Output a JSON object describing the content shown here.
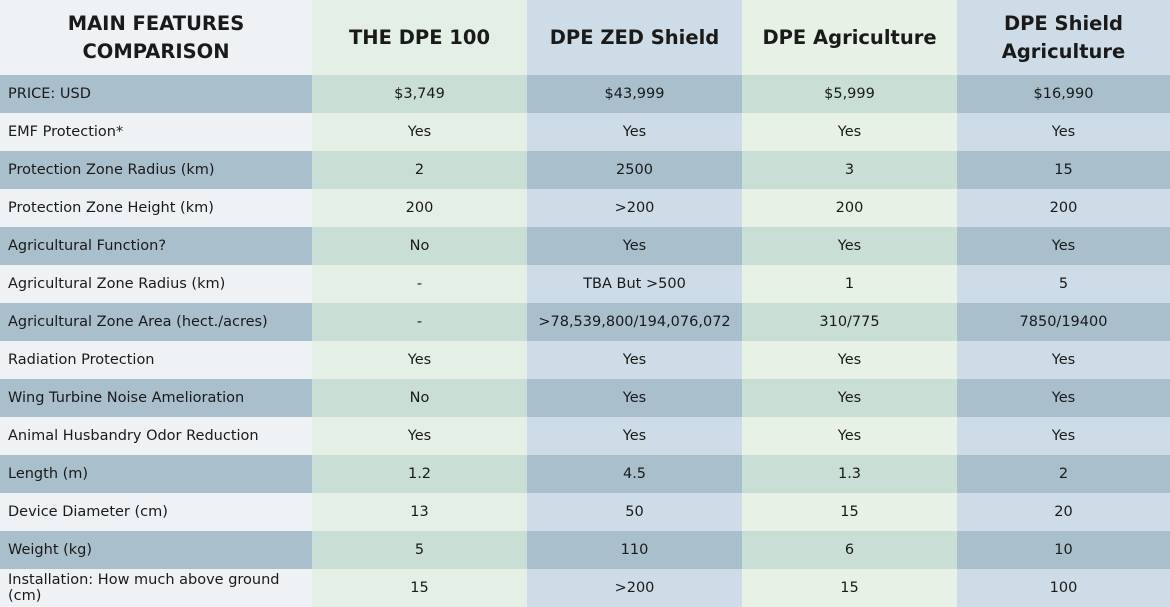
{
  "table": {
    "headers": [
      "MAIN FEATURES COMPARISON",
      "THE DPE 100",
      "DPE ZED Shield",
      "DPE Agriculture",
      "DPE Shield Agriculture"
    ],
    "rows": [
      [
        "PRICE: USD",
        "$3,749",
        "$43,999",
        "$5,999",
        "$16,990"
      ],
      [
        "EMF Protection*",
        "Yes",
        "Yes",
        "Yes",
        "Yes"
      ],
      [
        "Protection Zone Radius (km)",
        "2",
        "2500",
        "3",
        "15"
      ],
      [
        "Protection Zone Height (km)",
        "200",
        ">200",
        "200",
        "200"
      ],
      [
        "Agricultural Function?",
        "No",
        "Yes",
        "Yes",
        "Yes"
      ],
      [
        "Agricultural Zone Radius (km)",
        "-",
        "TBA But >500",
        "1",
        "5"
      ],
      [
        "Agricultural Zone Area (hect./acres)",
        "-",
        ">78,539,800/194,076,072",
        "310/775",
        "7850/19400"
      ],
      [
        "Radiation Protection",
        "Yes",
        "Yes",
        "Yes",
        "Yes"
      ],
      [
        "Wing Turbine Noise Amelioration",
        "No",
        "Yes",
        "Yes",
        "Yes"
      ],
      [
        "Animal Husbandry Odor Reduction",
        "Yes",
        "Yes",
        "Yes",
        "Yes"
      ],
      [
        "Length (m)",
        "1.2",
        "4.5",
        "1.3",
        "2"
      ],
      [
        "Device Diameter (cm)",
        "13",
        "50",
        "15",
        "20"
      ],
      [
        "Weight (kg)",
        "5",
        "110",
        "6",
        "10"
      ],
      [
        "Installation: How much above ground (cm)",
        "15",
        ">200",
        "15",
        "100"
      ]
    ]
  },
  "colors": {
    "row_dark": "#a9bfcc",
    "row_light": "#eef2f4",
    "green_column_light": "#e4f0e6",
    "green_column_dark": "#c9dfd5",
    "blue_column_light": "#cddce6"
  }
}
